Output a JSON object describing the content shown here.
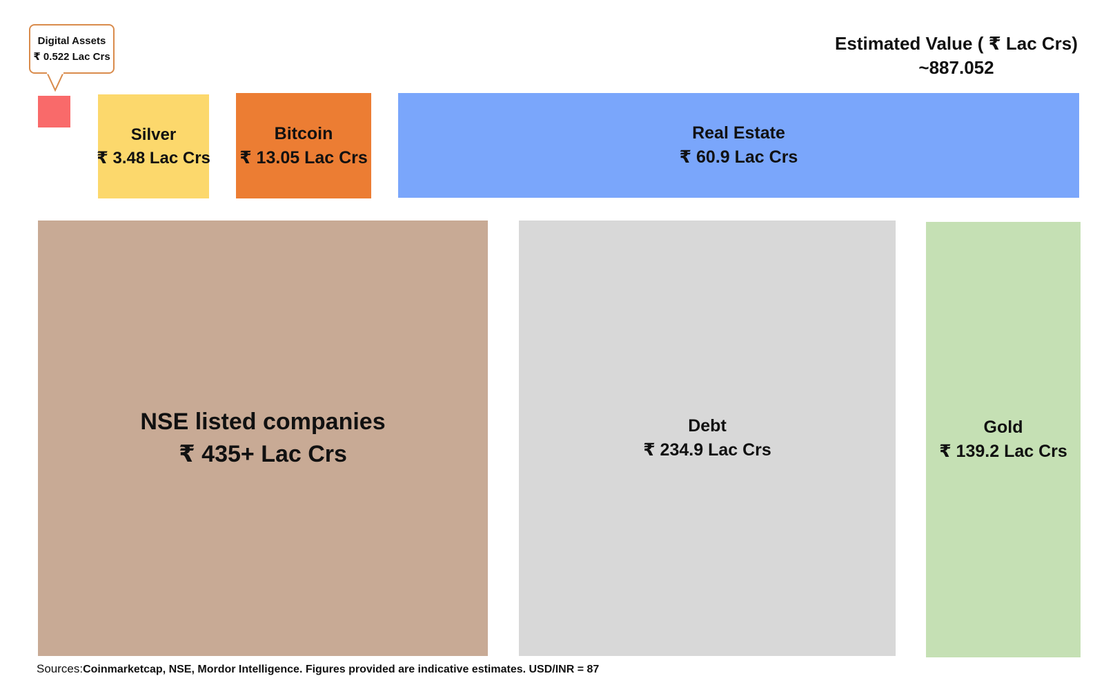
{
  "chart_data": {
    "type": "treemap",
    "title": "",
    "unit": "₹ Lac Crs",
    "items": [
      {
        "key": "digital",
        "name": "Digital Assets",
        "value": 0.522,
        "value_label": "₹ 0.522 Lac Crs",
        "color": "#f96a6a"
      },
      {
        "key": "silver",
        "name": "Silver",
        "value": 3.48,
        "value_label": "₹ 3.48 Lac Crs",
        "color": "#fcd86c"
      },
      {
        "key": "bitcoin",
        "name": "Bitcoin",
        "value": 13.05,
        "value_label": "₹ 13.05 Lac Crs",
        "color": "#ec7d33"
      },
      {
        "key": "realestate",
        "name": "Real Estate",
        "value": 60.9,
        "value_label": "₹ 60.9 Lac Crs",
        "color": "#7aa6fb"
      },
      {
        "key": "nse",
        "name": "NSE listed companies",
        "value": 435,
        "value_label": "₹ 435+ Lac Crs",
        "color": "#c8aa95"
      },
      {
        "key": "debt",
        "name": "Debt",
        "value": 234.9,
        "value_label": "₹ 234.9 Lac Crs",
        "color": "#d8d8d8"
      },
      {
        "key": "gold",
        "name": "Gold",
        "value": 139.2,
        "value_label": "₹ 139.2 Lac Crs",
        "color": "#c5e0b4"
      }
    ]
  },
  "callout": {
    "line1": "Digital Assets",
    "line2": "₹ 0.522 Lac Crs"
  },
  "total": {
    "label": "Estimated Value ( ₹ Lac Crs)",
    "value": "~887.052"
  },
  "footer": {
    "sources_key": "Sources:",
    "sources_text": "Coinmarketcap, NSE, Mordor Intelligence. Figures provided are indicative estimates. USD/INR = 87"
  }
}
